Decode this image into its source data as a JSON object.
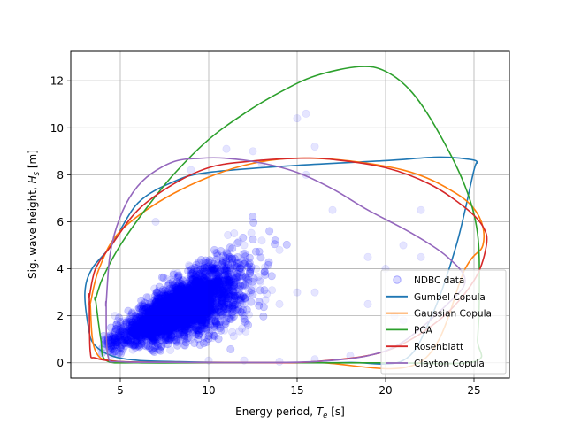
{
  "chart_data": {
    "type": "scatter",
    "xlabel": "Energy period, T_e [s]",
    "ylabel": "Sig. wave height, H_s [m]",
    "xlim": [
      2.2,
      27.0
    ],
    "ylim": [
      -0.65,
      13.25
    ],
    "xticks": [
      5,
      10,
      15,
      20,
      25
    ],
    "yticks": [
      0,
      2,
      4,
      6,
      8,
      10,
      12
    ],
    "grid": true,
    "legend_position": "lower-right",
    "scatter": {
      "name": "NDBC data",
      "color": "#0000ff",
      "alpha": 0.1,
      "bulk_points": [
        [
          5,
          1
        ],
        [
          6,
          1.6
        ],
        [
          7,
          2.4
        ],
        [
          8,
          3.2
        ],
        [
          9,
          3.8
        ],
        [
          10,
          4.3
        ],
        [
          11,
          4.7
        ],
        [
          12,
          5
        ],
        [
          13,
          5.2
        ],
        [
          14,
          4.8
        ],
        [
          8,
          1.2
        ],
        [
          10,
          1.5
        ],
        [
          12,
          2
        ],
        [
          14,
          2.5
        ],
        [
          15,
          3
        ],
        [
          16,
          3
        ],
        [
          15.5,
          8
        ],
        [
          16,
          9.2
        ],
        [
          15,
          10.4
        ],
        [
          15.5,
          10.6
        ],
        [
          17,
          6.5
        ],
        [
          19,
          4.5
        ],
        [
          20,
          4
        ],
        [
          21,
          5
        ],
        [
          22,
          4.5
        ],
        [
          20.5,
          2
        ],
        [
          21,
          1.8
        ],
        [
          22,
          6.5
        ],
        [
          10,
          0.1
        ],
        [
          12,
          0.1
        ],
        [
          14,
          0.05
        ],
        [
          16,
          0.15
        ],
        [
          18,
          0.3
        ],
        [
          19,
          2.5
        ],
        [
          13,
          8.5
        ],
        [
          12.5,
          9
        ],
        [
          11,
          9.1
        ],
        [
          9,
          8.2
        ],
        [
          7,
          6
        ],
        [
          4.7,
          2
        ]
      ]
    },
    "series": [
      {
        "name": "Gumbel Copula",
        "color": "#1f77b4",
        "points": [
          [
            3.0,
            3
          ],
          [
            3.2,
            1.5
          ],
          [
            3.5,
            0.8
          ],
          [
            4.5,
            0.3
          ],
          [
            6,
            0.1
          ],
          [
            8,
            0.05
          ],
          [
            10,
            0.02
          ],
          [
            14,
            0.01
          ],
          [
            18,
            0.01
          ],
          [
            21,
            0.1
          ],
          [
            22.5,
            1.8
          ],
          [
            24,
            5
          ],
          [
            25,
            8.2
          ],
          [
            25.2,
            8.5
          ],
          [
            24.8,
            8.65
          ],
          [
            23,
            8.75
          ],
          [
            20,
            8.6
          ],
          [
            15,
            8.4
          ],
          [
            10,
            8.1
          ],
          [
            8,
            7.7
          ],
          [
            6,
            6.8
          ],
          [
            4.5,
            5
          ],
          [
            3.4,
            4
          ]
        ]
      },
      {
        "name": "Gaussian Copula",
        "color": "#ff7f0e",
        "points": [
          [
            3.3,
            2.5
          ],
          [
            3.6,
            0.5
          ],
          [
            5,
            0.05
          ],
          [
            10,
            0.01
          ],
          [
            16,
            0.01
          ],
          [
            22,
            0.05
          ],
          [
            24.5,
            4
          ],
          [
            25.5,
            5
          ],
          [
            25.3,
            6.2
          ],
          [
            24,
            7.2
          ],
          [
            21,
            8.2
          ],
          [
            16,
            8.7
          ],
          [
            12,
            8.4
          ],
          [
            8,
            7.2
          ],
          [
            5,
            5.6
          ],
          [
            3.8,
            4
          ],
          [
            3.3,
            2.5
          ]
        ]
      },
      {
        "name": "PCA",
        "color": "#2ca02c",
        "points": [
          [
            3.6,
            2.7
          ],
          [
            3.9,
            1
          ],
          [
            4.2,
            0.1
          ],
          [
            6,
            0
          ],
          [
            10,
            0
          ],
          [
            15,
            0
          ],
          [
            20,
            0
          ],
          [
            25,
            0.05
          ],
          [
            25.2,
            1
          ],
          [
            25.3,
            3
          ],
          [
            25.2,
            5.5
          ],
          [
            24.5,
            7.5
          ],
          [
            23,
            9.8
          ],
          [
            21.5,
            11.5
          ],
          [
            20,
            12.4
          ],
          [
            18.5,
            12.6
          ],
          [
            16,
            12.2
          ],
          [
            14,
            11.5
          ],
          [
            12,
            10.6
          ],
          [
            10,
            9.5
          ],
          [
            8,
            8
          ],
          [
            6.5,
            6.6
          ],
          [
            5,
            5
          ],
          [
            4,
            3.6
          ],
          [
            3.6,
            2.7
          ]
        ]
      },
      {
        "name": "Rosenblatt",
        "color": "#d62728",
        "points": [
          [
            3.25,
            2.8
          ],
          [
            3.3,
            0.5
          ],
          [
            3.6,
            0.2
          ],
          [
            5,
            0.05
          ],
          [
            8,
            0.02
          ],
          [
            12,
            0.01
          ],
          [
            16,
            0.05
          ],
          [
            20,
            0.5
          ],
          [
            23,
            1.8
          ],
          [
            25,
            3.5
          ],
          [
            25.7,
            5
          ],
          [
            25.5,
            5.8
          ],
          [
            24.5,
            6.6
          ],
          [
            22.5,
            7.6
          ],
          [
            20,
            8.3
          ],
          [
            17,
            8.65
          ],
          [
            15,
            8.7
          ],
          [
            12,
            8.55
          ],
          [
            10,
            8.3
          ],
          [
            8,
            7.6
          ],
          [
            6,
            6.5
          ],
          [
            4.5,
            5
          ],
          [
            3.6,
            4
          ],
          [
            3.25,
            2.8
          ]
        ]
      },
      {
        "name": "Clayton Copula",
        "color": "#9467bd",
        "points": [
          [
            4.2,
            2.5
          ],
          [
            4.3,
            0.3
          ],
          [
            5,
            0.05
          ],
          [
            8,
            0.02
          ],
          [
            12,
            0.01
          ],
          [
            16,
            0.05
          ],
          [
            19,
            0.3
          ],
          [
            21,
            0.9
          ],
          [
            23.5,
            2.5
          ],
          [
            24.5,
            3.5
          ],
          [
            23.5,
            4.5
          ],
          [
            21.5,
            5.5
          ],
          [
            19,
            6.5
          ],
          [
            17,
            7.4
          ],
          [
            15,
            8.1
          ],
          [
            13,
            8.5
          ],
          [
            11,
            8.7
          ],
          [
            9.5,
            8.7
          ],
          [
            8,
            8.55
          ],
          [
            6.5,
            7.9
          ],
          [
            5.5,
            7
          ],
          [
            4.8,
            5.8
          ],
          [
            4.4,
            4.5
          ],
          [
            4.2,
            2.5
          ]
        ]
      }
    ]
  }
}
